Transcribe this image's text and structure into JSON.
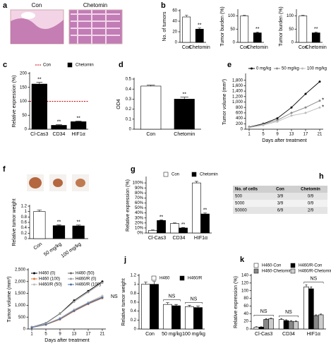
{
  "panel_a": {
    "panel": "a",
    "labels": [
      "Con",
      "Chetomin"
    ]
  },
  "panel_h": {
    "panel": "h",
    "header": [
      "No. of cells",
      "Con",
      "Chetomin"
    ],
    "rows": [
      [
        "500",
        "3/9",
        "0/9"
      ],
      [
        "5000",
        "3/9",
        "0/9"
      ],
      [
        "50000",
        "6/9",
        "2/9"
      ]
    ]
  },
  "chart_data": [
    {
      "type": "bar",
      "panel": "b",
      "ylabel": "No. of tumors",
      "categories": [
        "Con",
        "Chetomin"
      ],
      "values": [
        48,
        25
      ],
      "errors": [
        3,
        2
      ],
      "colors": [
        "#ffffff",
        "#000000"
      ],
      "significance": [
        null,
        "**"
      ],
      "ylim": [
        0,
        60
      ],
      "yticks": [
        0,
        20,
        40,
        60
      ]
    },
    {
      "type": "bar",
      "ylabel": "Tumor burden (%)",
      "categories": [
        "Con",
        "Chetomin"
      ],
      "values": [
        100,
        36
      ],
      "errors": [
        2,
        3
      ],
      "colors": [
        "#ffffff",
        "#000000"
      ],
      "significance": [
        null,
        "**"
      ],
      "ylim": [
        0,
        120
      ],
      "yticks": [
        0,
        50,
        100
      ]
    },
    {
      "type": "bar",
      "ylabel": "Tumor burden (%)",
      "categories": [
        "Con",
        "Chetomin"
      ],
      "values": [
        100,
        36
      ],
      "errors": [
        2,
        3
      ],
      "colors": [
        "#ffffff",
        "#000000"
      ],
      "significance": [
        null,
        "**"
      ],
      "ylim": [
        0,
        120
      ],
      "yticks": [
        0,
        50,
        100
      ]
    },
    {
      "type": "bar",
      "panel": "c",
      "ylabel": "Relative expression (%)",
      "categories": [
        "Cl-Cas3",
        "CD34",
        "HIF1α"
      ],
      "reference": {
        "name": "Con",
        "value": 100,
        "color": "#cc0000"
      },
      "series": [
        {
          "name": "Chetomin",
          "color": "#000000",
          "values": [
            162,
            14,
            27
          ],
          "errors": [
            6,
            2,
            2
          ],
          "significance": [
            "**",
            "**",
            "**"
          ]
        }
      ],
      "ylim": [
        0,
        200
      ],
      "yticks": [
        0,
        50,
        100,
        150,
        200
      ]
    },
    {
      "type": "bar",
      "panel": "d",
      "ylabel": "OD4",
      "categories": [
        "Con",
        "Chetomin"
      ],
      "values": [
        0.43,
        0.3
      ],
      "errors": [
        0.01,
        0.02
      ],
      "colors": [
        "#ffffff",
        "#000000"
      ],
      "significance": [
        null,
        "**"
      ],
      "ylim": [
        0,
        0.5
      ],
      "yticks": [
        0,
        0.1,
        0.2,
        0.3,
        0.4,
        0.5
      ]
    },
    {
      "type": "line",
      "panel": "e",
      "xlabel": "Days after treatment",
      "ylabel": "Tumor volume (mm³)",
      "x": [
        1,
        5,
        9,
        13,
        17,
        21
      ],
      "xlim": [
        0,
        22
      ],
      "xticks": [
        1,
        5,
        9,
        13,
        17,
        21
      ],
      "ylim": [
        0,
        2000
      ],
      "yticks": [
        0,
        200,
        400,
        600,
        800,
        {
          "value": 1000,
          "label": "1,000"
        },
        {
          "value": 1200,
          "label": "1,200"
        },
        {
          "value": 1400,
          "label": "1,400"
        },
        {
          "value": 1600,
          "label": "1,600"
        },
        {
          "value": 1800,
          "label": "1,800"
        }
      ],
      "series": [
        {
          "name": "0 mg/kg",
          "color": "#000000",
          "values": [
            80,
            200,
            400,
            800,
            1300,
            1750
          ]
        },
        {
          "name": "50 mg/kg",
          "color": "#888888",
          "values": [
            70,
            180,
            330,
            600,
            800,
            1050
          ],
          "end_label": "*"
        },
        {
          "name": "100 mg/kg",
          "color": "#bbbbbb",
          "values": [
            60,
            150,
            280,
            500,
            600,
            800
          ],
          "end_label": "*"
        }
      ]
    },
    {
      "type": "bar",
      "panel": "f",
      "ylabel": "Relative tumor weight",
      "categories": [
        "Con",
        "50 mg/kg",
        "100 mg/kg"
      ],
      "values": [
        1,
        0.48,
        0.47
      ],
      "errors": [
        0.06,
        0.03,
        0.03
      ],
      "colors": [
        "#ffffff",
        "#000000",
        "#000000"
      ],
      "significance": [
        null,
        "**",
        "**"
      ],
      "ylim": [
        0,
        1.2
      ],
      "yticks": [
        0,
        0.2,
        0.4,
        0.6,
        0.8,
        1,
        1.2
      ]
    },
    {
      "type": "bar",
      "panel": "g",
      "ylabel": "Relative expression (%)",
      "categories": [
        "Cl-Cas3",
        "CD34",
        "HIF1α"
      ],
      "series": [
        {
          "name": "Con",
          "color": "#ffffff",
          "values": [
            5,
            19,
            100
          ],
          "errors": [
            1,
            1,
            3
          ]
        },
        {
          "name": "Chetomin",
          "color": "#000000",
          "values": [
            25,
            10,
            38
          ],
          "errors": [
            1,
            1,
            2
          ],
          "significance": [
            "**",
            "**",
            "**"
          ]
        }
      ],
      "ylim": [
        0,
        110
      ],
      "yticks": [
        {
          "value": 0,
          "label": "0%"
        },
        {
          "value": 10,
          "label": "10%"
        },
        {
          "value": 20,
          "label": "20%"
        },
        {
          "value": 30,
          "label": "30%"
        },
        {
          "value": 40,
          "label": "40%"
        },
        {
          "value": 50,
          "label": "50%"
        },
        {
          "value": 60,
          "label": "60%"
        },
        {
          "value": 70,
          "label": "70%"
        },
        {
          "value": 80,
          "label": "80%"
        },
        {
          "value": 90,
          "label": "90%"
        },
        {
          "value": 100,
          "label": "100%"
        }
      ]
    },
    {
      "type": "line",
      "xlabel": "Days after treatment",
      "ylabel": "Tumor volume (mm³)",
      "x": [
        1,
        5,
        9,
        13,
        17,
        21
      ],
      "xlim": [
        0,
        22
      ],
      "xticks": [
        1,
        5,
        9,
        13,
        17,
        21
      ],
      "ylim": [
        0,
        2500
      ],
      "yticks": [
        0,
        500,
        {
          "value": 1000,
          "label": "1,000"
        },
        {
          "value": 1500,
          "label": "1,500"
        },
        {
          "value": 2000,
          "label": "2,000"
        },
        {
          "value": 2500,
          "label": "2,500"
        }
      ],
      "annotation": "NS",
      "series": [
        {
          "name": "H460 (0)",
          "color": "#000000",
          "values": [
            80,
            250,
            650,
            1200,
            1600,
            2000
          ]
        },
        {
          "name": "H460 (50)",
          "color": "#666666",
          "values": [
            70,
            200,
            450,
            800,
            1100,
            1350
          ]
        },
        {
          "name": "H460 (100)",
          "color": "#e07b39",
          "values": [
            60,
            180,
            400,
            750,
            1050,
            1300
          ]
        },
        {
          "name": "H460/R (0)",
          "color": "#999999",
          "values": [
            80,
            240,
            640,
            1150,
            1550,
            1950
          ]
        },
        {
          "name": "H460/R (50)",
          "color": "#bbbbbb",
          "values": [
            70,
            210,
            460,
            820,
            1120,
            1400
          ]
        },
        {
          "name": "H460/R (100)",
          "color": "#4f6fa8",
          "values": [
            60,
            190,
            420,
            770,
            1070,
            1320
          ]
        }
      ]
    },
    {
      "type": "bar",
      "panel": "j",
      "ylabel": "Relative tumor weight",
      "categories": [
        "Con",
        "50 mg/kg",
        "100 mg/kg"
      ],
      "group_labels": [
        null,
        "NS",
        "NS"
      ],
      "series": [
        {
          "name": "H460",
          "color": "#ffffff",
          "values": [
            1,
            0.55,
            0.5
          ],
          "errors": [
            0.05,
            0.04,
            0.03
          ]
        },
        {
          "name": "H460/R",
          "color": "#000000",
          "values": [
            1,
            0.52,
            0.48
          ],
          "errors": [
            0.06,
            0.03,
            0.03
          ]
        }
      ],
      "ylim": [
        0,
        1.2
      ],
      "yticks": [
        0,
        0.2,
        0.4,
        0.6,
        0.8,
        1,
        1.2
      ]
    },
    {
      "type": "bar",
      "panel": "k",
      "ylabel": "Relative expression (%)",
      "categories": [
        "Cl-Cas3",
        "CD34",
        "HIF1α"
      ],
      "group_labels": [
        "NS",
        "NS",
        "NS"
      ],
      "series": [
        {
          "name": "H460-Con",
          "color": "#ffffff",
          "values": [
            5,
            25,
            110
          ],
          "errors": [
            1,
            2,
            5
          ]
        },
        {
          "name": "H460/R-Con",
          "color": "#000000",
          "values": [
            5,
            22,
            105
          ],
          "errors": [
            1,
            2,
            5
          ]
        },
        {
          "name": "H460-Chetomin",
          "color": "#888888",
          "values": [
            25,
            20,
            35
          ],
          "errors": [
            2,
            2,
            2
          ]
        },
        {
          "name": "H460/R-Chetomin",
          "color": "#cccccc",
          "values": [
            27,
            19,
            37
          ],
          "errors": [
            2,
            2,
            2
          ]
        }
      ],
      "ylim": [
        0,
        140
      ],
      "yticks": [
        0,
        20,
        40,
        60,
        80,
        100,
        120,
        140
      ]
    }
  ]
}
